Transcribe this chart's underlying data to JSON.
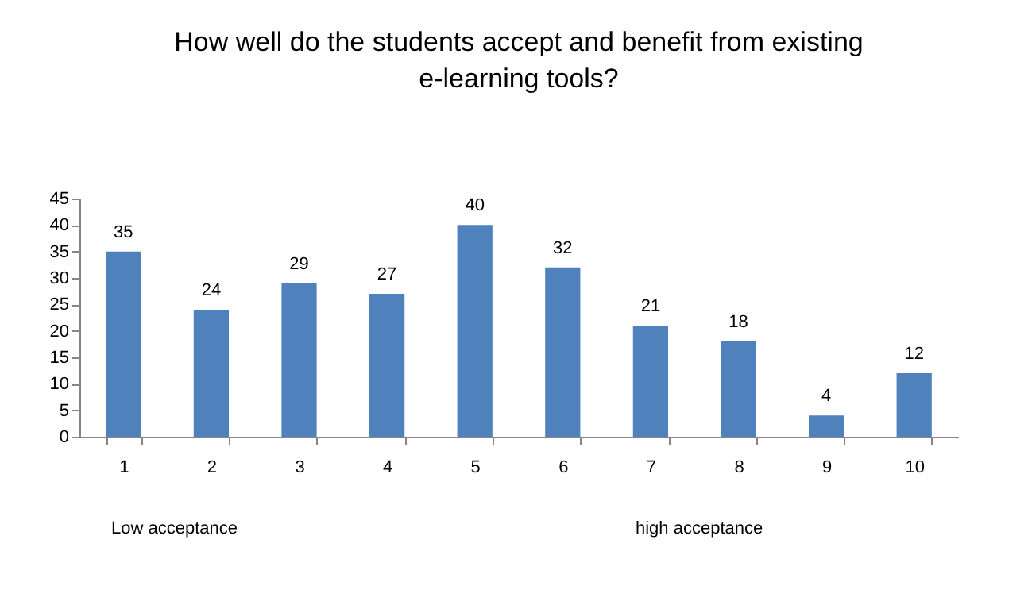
{
  "chart_data": {
    "type": "bar",
    "title": "How well do the students accept and benefit from existing\ne-learning tools?",
    "categories": [
      "1",
      "2",
      "3",
      "4",
      "5",
      "6",
      "7",
      "8",
      "9",
      "10"
    ],
    "values": [
      35,
      24,
      29,
      27,
      40,
      32,
      21,
      18,
      4,
      12
    ],
    "color": "#4f81bd",
    "ylim": [
      0,
      45
    ],
    "yticks": [
      0,
      5,
      10,
      15,
      20,
      25,
      30,
      35,
      40,
      45
    ],
    "data_labels": true,
    "annotations": [
      "Low acceptance",
      "high acceptance"
    ]
  }
}
